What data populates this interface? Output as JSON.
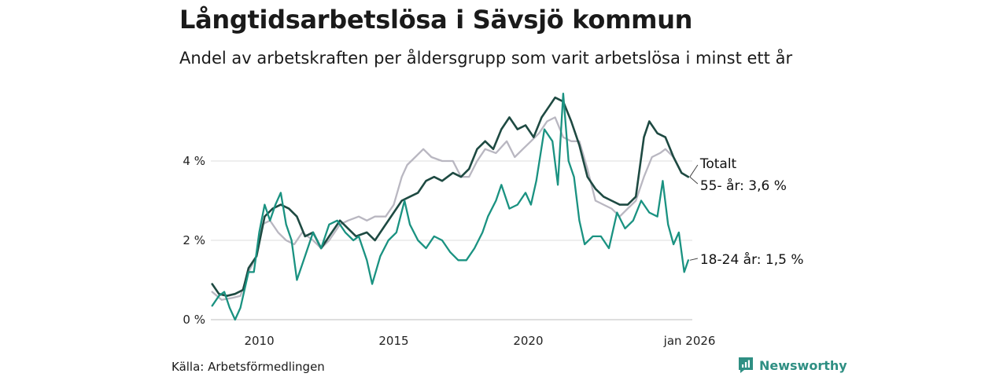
{
  "title": "Långtidsarbetslösa i Sävsjö kommun",
  "subtitle": "Andel av arbetskraften per åldersgrupp som varit arbetslösa i minst ett år",
  "source": "Källa: Arbetsförmedlingen",
  "brand": {
    "name": "Newsworthy",
    "icon": "newsworthy-logo-icon",
    "color": "#2f8f83"
  },
  "chart_data": {
    "type": "line",
    "title": "Långtidsarbetslösa i Sävsjö kommun",
    "xlabel": "",
    "ylabel": "",
    "xlim": [
      2008.2,
      2026.1
    ],
    "ylim": [
      0,
      6
    ],
    "y_ticks": [
      {
        "value": 0,
        "label": "0 %"
      },
      {
        "value": 2,
        "label": "2 %"
      },
      {
        "value": 4,
        "label": "4 %"
      }
    ],
    "x_ticks": [
      {
        "value": 2010,
        "label": "2010"
      },
      {
        "value": 2015,
        "label": "2015"
      },
      {
        "value": 2020,
        "label": "2020"
      },
      {
        "value": 2026.0,
        "label": "jan 2026"
      }
    ],
    "grid": "horizontal",
    "series": [
      {
        "name": "55- år",
        "label": "55- år: 3,6 %",
        "color": "#b9b7c1",
        "points": [
          [
            2008.25,
            0.7
          ],
          [
            2008.6,
            0.5
          ],
          [
            2009.0,
            0.55
          ],
          [
            2009.3,
            0.6
          ],
          [
            2009.6,
            1.2
          ],
          [
            2009.9,
            1.6
          ],
          [
            2010.1,
            2.4
          ],
          [
            2010.4,
            2.5
          ],
          [
            2010.7,
            2.2
          ],
          [
            2011.0,
            2.0
          ],
          [
            2011.3,
            1.9
          ],
          [
            2011.6,
            2.2
          ],
          [
            2012.0,
            2.0
          ],
          [
            2012.3,
            1.8
          ],
          [
            2012.6,
            2.0
          ],
          [
            2013.0,
            2.4
          ],
          [
            2013.3,
            2.5
          ],
          [
            2013.7,
            2.6
          ],
          [
            2014.0,
            2.5
          ],
          [
            2014.3,
            2.6
          ],
          [
            2014.7,
            2.6
          ],
          [
            2015.0,
            2.9
          ],
          [
            2015.3,
            3.6
          ],
          [
            2015.5,
            3.9
          ],
          [
            2015.8,
            4.1
          ],
          [
            2016.1,
            4.3
          ],
          [
            2016.4,
            4.1
          ],
          [
            2016.8,
            4.0
          ],
          [
            2017.2,
            4.0
          ],
          [
            2017.5,
            3.6
          ],
          [
            2017.8,
            3.6
          ],
          [
            2018.1,
            4.0
          ],
          [
            2018.4,
            4.3
          ],
          [
            2018.8,
            4.2
          ],
          [
            2019.2,
            4.5
          ],
          [
            2019.5,
            4.1
          ],
          [
            2019.8,
            4.3
          ],
          [
            2020.1,
            4.5
          ],
          [
            2020.4,
            4.7
          ],
          [
            2020.7,
            5.0
          ],
          [
            2021.0,
            5.1
          ],
          [
            2021.3,
            4.6
          ],
          [
            2021.6,
            4.5
          ],
          [
            2021.9,
            4.5
          ],
          [
            2022.2,
            3.8
          ],
          [
            2022.5,
            3.0
          ],
          [
            2022.8,
            2.9
          ],
          [
            2023.1,
            2.8
          ],
          [
            2023.4,
            2.6
          ],
          [
            2023.7,
            2.8
          ],
          [
            2024.0,
            3.0
          ],
          [
            2024.3,
            3.6
          ],
          [
            2024.6,
            4.1
          ],
          [
            2024.9,
            4.2
          ],
          [
            2025.1,
            4.3
          ],
          [
            2025.4,
            4.1
          ],
          [
            2025.7,
            3.7
          ],
          [
            2025.95,
            3.6
          ]
        ]
      },
      {
        "name": "Totalt",
        "label": "Totalt",
        "color": "#1e4a42",
        "points": [
          [
            2008.25,
            0.9
          ],
          [
            2008.5,
            0.65
          ],
          [
            2008.8,
            0.6
          ],
          [
            2009.1,
            0.65
          ],
          [
            2009.4,
            0.75
          ],
          [
            2009.6,
            1.3
          ],
          [
            2009.9,
            1.6
          ],
          [
            2010.2,
            2.6
          ],
          [
            2010.5,
            2.8
          ],
          [
            2010.8,
            2.9
          ],
          [
            2011.1,
            2.8
          ],
          [
            2011.4,
            2.6
          ],
          [
            2011.7,
            2.1
          ],
          [
            2012.0,
            2.2
          ],
          [
            2012.3,
            1.8
          ],
          [
            2012.6,
            2.1
          ],
          [
            2013.0,
            2.5
          ],
          [
            2013.3,
            2.3
          ],
          [
            2013.6,
            2.1
          ],
          [
            2014.0,
            2.2
          ],
          [
            2014.3,
            2.0
          ],
          [
            2014.6,
            2.3
          ],
          [
            2015.0,
            2.7
          ],
          [
            2015.3,
            3.0
          ],
          [
            2015.6,
            3.1
          ],
          [
            2015.9,
            3.2
          ],
          [
            2016.2,
            3.5
          ],
          [
            2016.5,
            3.6
          ],
          [
            2016.8,
            3.5
          ],
          [
            2017.2,
            3.7
          ],
          [
            2017.5,
            3.6
          ],
          [
            2017.8,
            3.8
          ],
          [
            2018.1,
            4.3
          ],
          [
            2018.4,
            4.5
          ],
          [
            2018.7,
            4.3
          ],
          [
            2019.0,
            4.8
          ],
          [
            2019.3,
            5.1
          ],
          [
            2019.6,
            4.8
          ],
          [
            2019.9,
            4.9
          ],
          [
            2020.2,
            4.6
          ],
          [
            2020.5,
            5.1
          ],
          [
            2020.8,
            5.4
          ],
          [
            2021.0,
            5.6
          ],
          [
            2021.3,
            5.5
          ],
          [
            2021.6,
            5.0
          ],
          [
            2021.9,
            4.4
          ],
          [
            2022.2,
            3.6
          ],
          [
            2022.5,
            3.3
          ],
          [
            2022.8,
            3.1
          ],
          [
            2023.1,
            3.0
          ],
          [
            2023.4,
            2.9
          ],
          [
            2023.7,
            2.9
          ],
          [
            2024.0,
            3.1
          ],
          [
            2024.3,
            4.6
          ],
          [
            2024.5,
            5.0
          ],
          [
            2024.8,
            4.7
          ],
          [
            2025.1,
            4.6
          ],
          [
            2025.4,
            4.1
          ],
          [
            2025.7,
            3.7
          ],
          [
            2025.95,
            3.6
          ]
        ]
      },
      {
        "name": "18-24 år",
        "label": "18-24 år: 1,5 %",
        "color": "#1a9281",
        "points": [
          [
            2008.25,
            0.35
          ],
          [
            2008.5,
            0.6
          ],
          [
            2008.7,
            0.7
          ],
          [
            2008.9,
            0.3
          ],
          [
            2009.1,
            0.0
          ],
          [
            2009.3,
            0.3
          ],
          [
            2009.6,
            1.2
          ],
          [
            2009.8,
            1.2
          ],
          [
            2010.0,
            2.2
          ],
          [
            2010.2,
            2.9
          ],
          [
            2010.4,
            2.5
          ],
          [
            2010.6,
            2.9
          ],
          [
            2010.8,
            3.2
          ],
          [
            2011.0,
            2.4
          ],
          [
            2011.2,
            2.0
          ],
          [
            2011.4,
            1.0
          ],
          [
            2011.7,
            1.6
          ],
          [
            2012.0,
            2.2
          ],
          [
            2012.3,
            1.8
          ],
          [
            2012.6,
            2.4
          ],
          [
            2012.9,
            2.5
          ],
          [
            2013.2,
            2.2
          ],
          [
            2013.5,
            2.0
          ],
          [
            2013.7,
            2.1
          ],
          [
            2014.0,
            1.5
          ],
          [
            2014.2,
            0.9
          ],
          [
            2014.5,
            1.6
          ],
          [
            2014.8,
            2.0
          ],
          [
            2015.1,
            2.2
          ],
          [
            2015.4,
            3.0
          ],
          [
            2015.6,
            2.4
          ],
          [
            2015.9,
            2.0
          ],
          [
            2016.2,
            1.8
          ],
          [
            2016.5,
            2.1
          ],
          [
            2016.8,
            2.0
          ],
          [
            2017.1,
            1.7
          ],
          [
            2017.4,
            1.5
          ],
          [
            2017.7,
            1.5
          ],
          [
            2018.0,
            1.8
          ],
          [
            2018.3,
            2.2
          ],
          [
            2018.5,
            2.6
          ],
          [
            2018.8,
            3.0
          ],
          [
            2019.0,
            3.4
          ],
          [
            2019.3,
            2.8
          ],
          [
            2019.6,
            2.9
          ],
          [
            2019.9,
            3.2
          ],
          [
            2020.1,
            2.9
          ],
          [
            2020.3,
            3.5
          ],
          [
            2020.6,
            4.8
          ],
          [
            2020.9,
            4.5
          ],
          [
            2021.1,
            3.4
          ],
          [
            2021.3,
            5.7
          ],
          [
            2021.5,
            4.0
          ],
          [
            2021.7,
            3.6
          ],
          [
            2021.9,
            2.5
          ],
          [
            2022.1,
            1.9
          ],
          [
            2022.4,
            2.1
          ],
          [
            2022.7,
            2.1
          ],
          [
            2023.0,
            1.8
          ],
          [
            2023.3,
            2.7
          ],
          [
            2023.6,
            2.3
          ],
          [
            2023.9,
            2.5
          ],
          [
            2024.2,
            3.0
          ],
          [
            2024.5,
            2.7
          ],
          [
            2024.8,
            2.6
          ],
          [
            2025.0,
            3.5
          ],
          [
            2025.2,
            2.4
          ],
          [
            2025.4,
            1.9
          ],
          [
            2025.6,
            2.2
          ],
          [
            2025.8,
            1.2
          ],
          [
            2025.95,
            1.5
          ]
        ]
      }
    ]
  }
}
